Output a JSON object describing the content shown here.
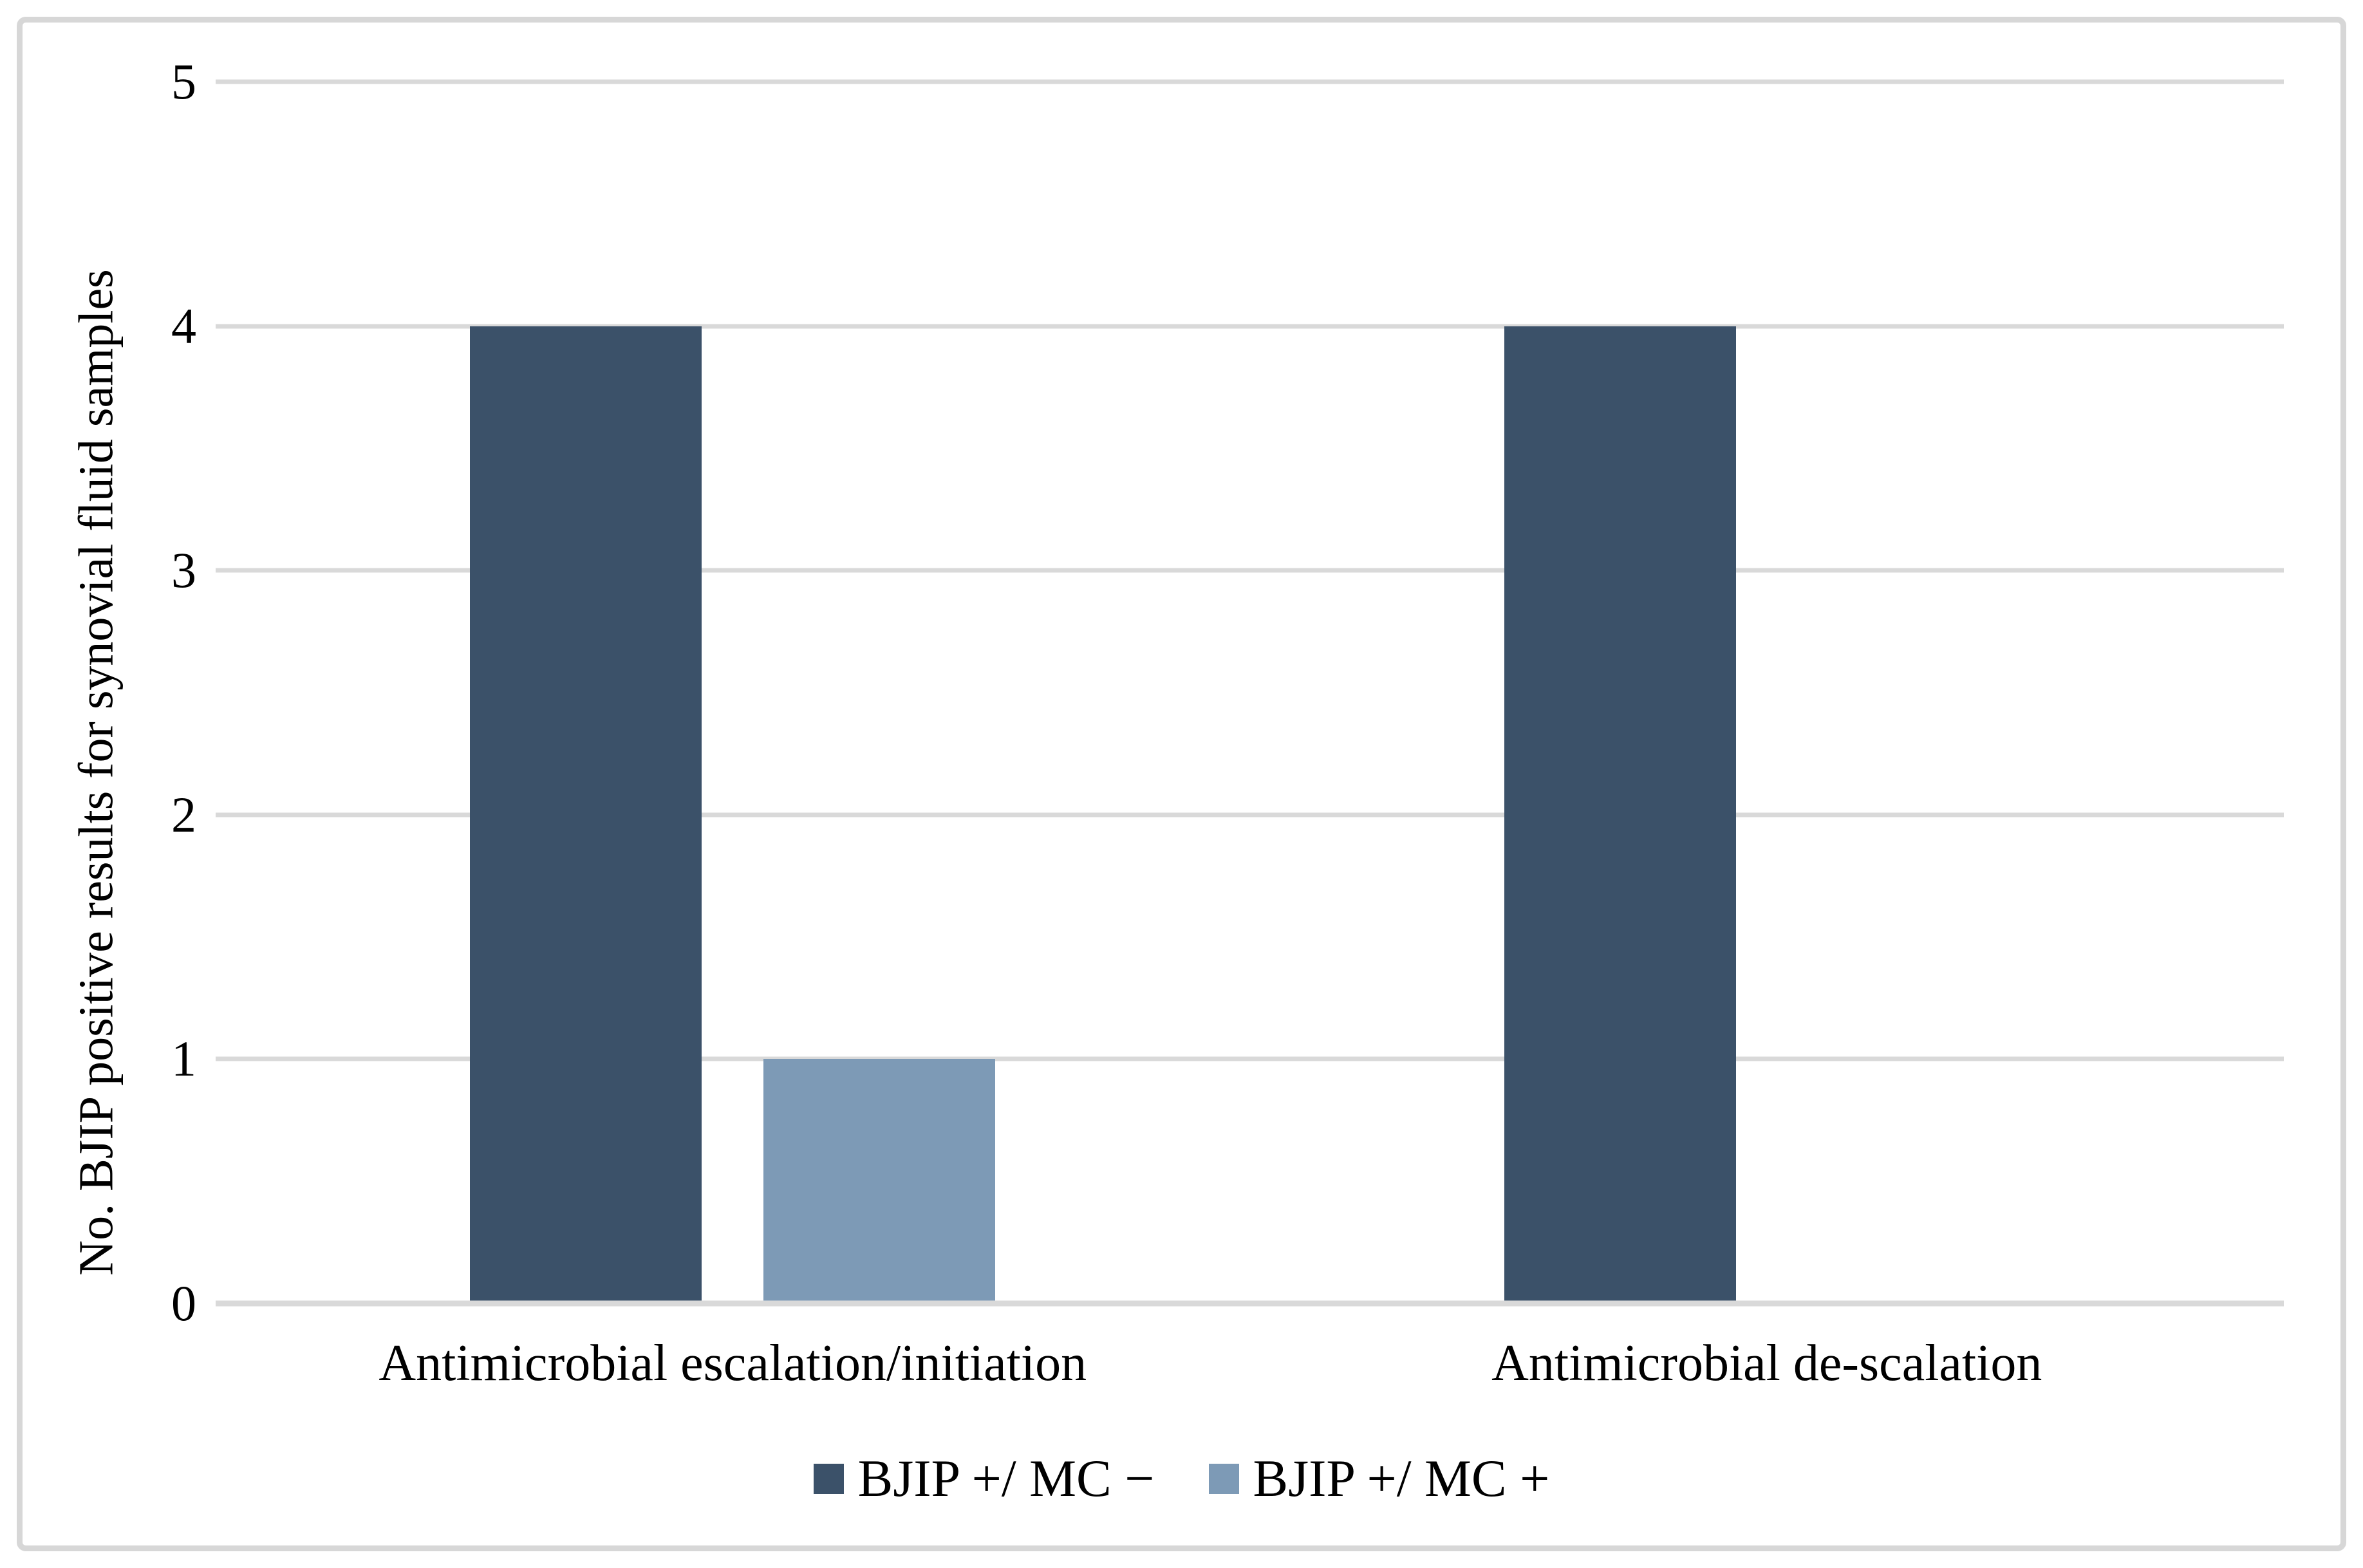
{
  "figure": {
    "background": "#ffffff",
    "frame_border_color": "#d7d7d7"
  },
  "chart_data": {
    "type": "bar",
    "title": "",
    "categories": [
      "Antimicrobial escalation/initiation",
      "Antimicrobial de-scalation"
    ],
    "series": [
      {
        "name": "BJIP +/ MC −",
        "color": "#3b5169",
        "values": [
          4,
          4
        ]
      },
      {
        "name": "BJIP +/ MC +",
        "color": "#7d9ab6",
        "values": [
          1,
          0
        ]
      }
    ],
    "xlabel": "",
    "ylabel": "No. BJIP positive results for synovial fluid samples",
    "ylim": [
      0,
      5
    ],
    "yticks": [
      0,
      1,
      2,
      3,
      4,
      5
    ],
    "grid": true,
    "gridline_color": "#d9d9d9",
    "legend_position": "bottom"
  }
}
